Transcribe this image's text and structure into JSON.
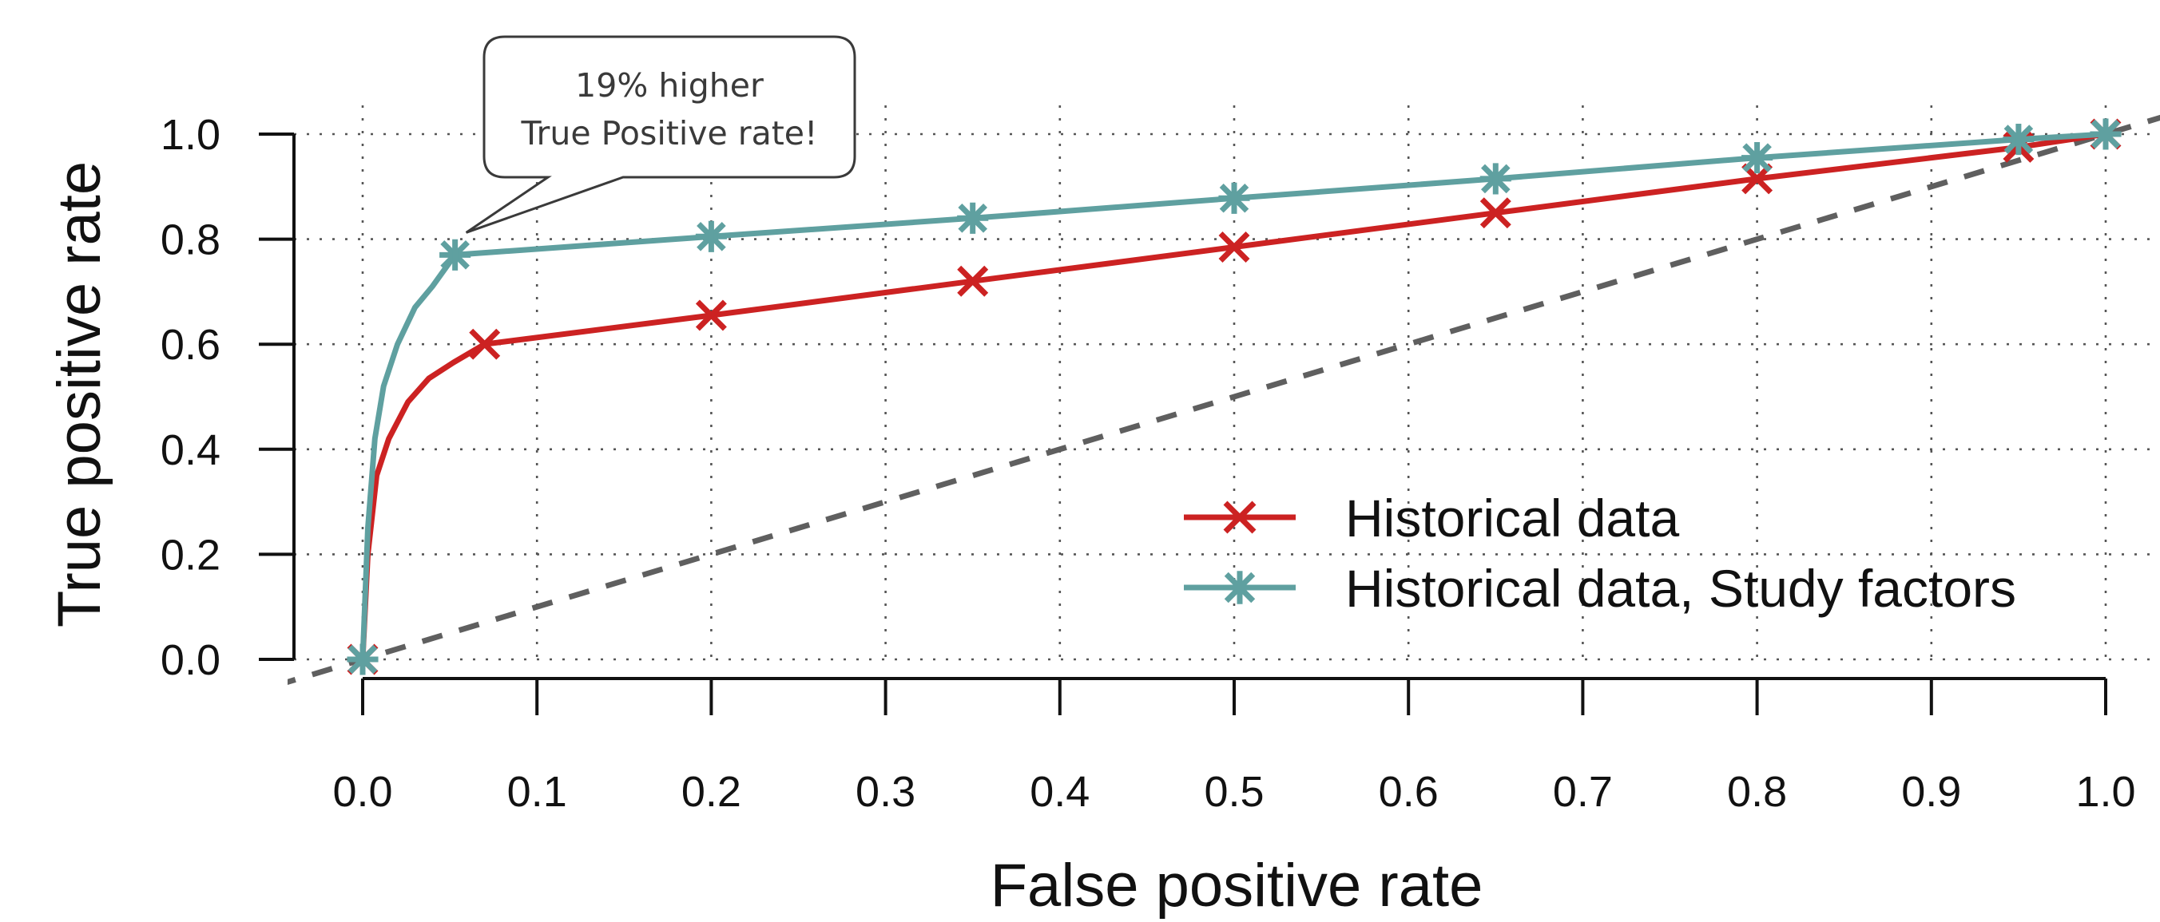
{
  "chart_data": {
    "type": "line",
    "xlabel": "False positive rate",
    "ylabel": "True positive rate",
    "xlim": [
      0.0,
      1.0
    ],
    "ylim": [
      0.0,
      1.0
    ],
    "x_ticks": [
      "0.0",
      "0.1",
      "0.2",
      "0.3",
      "0.4",
      "0.5",
      "0.6",
      "0.7",
      "0.8",
      "0.9",
      "1.0"
    ],
    "y_ticks": [
      "0.0",
      "0.2",
      "0.4",
      "0.6",
      "0.8",
      "1.0"
    ],
    "grid": true,
    "legend_position": "bottom-right",
    "reference_line": {
      "style": "dashed",
      "color": "#5f5f5f",
      "from": [
        0,
        0
      ],
      "to": [
        1,
        1
      ]
    },
    "series": [
      {
        "name": "Historical data",
        "color": "#cc2222",
        "marker": "x",
        "curve": [
          [
            0.0,
            0.0
          ],
          [
            0.003,
            0.2
          ],
          [
            0.008,
            0.35
          ],
          [
            0.015,
            0.42
          ],
          [
            0.026,
            0.49
          ],
          [
            0.038,
            0.535
          ],
          [
            0.052,
            0.565
          ],
          [
            0.07,
            0.6
          ],
          [
            0.2,
            0.655
          ],
          [
            0.35,
            0.72
          ],
          [
            0.5,
            0.785
          ],
          [
            0.65,
            0.85
          ],
          [
            0.8,
            0.915
          ],
          [
            0.95,
            0.975
          ],
          [
            1.0,
            1.0
          ]
        ],
        "points": [
          [
            0.0,
            0.0
          ],
          [
            0.07,
            0.6
          ],
          [
            0.2,
            0.655
          ],
          [
            0.35,
            0.72
          ],
          [
            0.5,
            0.785
          ],
          [
            0.65,
            0.85
          ],
          [
            0.8,
            0.915
          ],
          [
            0.95,
            0.975
          ],
          [
            1.0,
            1.0
          ]
        ]
      },
      {
        "name": "Historical data, Study factors",
        "color": "#5fa0a0",
        "marker": "asterisk",
        "curve": [
          [
            0.0,
            0.0
          ],
          [
            0.003,
            0.25
          ],
          [
            0.007,
            0.42
          ],
          [
            0.012,
            0.52
          ],
          [
            0.02,
            0.6
          ],
          [
            0.03,
            0.67
          ],
          [
            0.04,
            0.71
          ],
          [
            0.053,
            0.77
          ],
          [
            0.2,
            0.805
          ],
          [
            0.35,
            0.84
          ],
          [
            0.5,
            0.878
          ],
          [
            0.65,
            0.915
          ],
          [
            0.8,
            0.955
          ],
          [
            0.95,
            0.99
          ],
          [
            1.0,
            1.0
          ]
        ],
        "points": [
          [
            0.0,
            0.0
          ],
          [
            0.053,
            0.77
          ],
          [
            0.2,
            0.805
          ],
          [
            0.35,
            0.84
          ],
          [
            0.5,
            0.878
          ],
          [
            0.65,
            0.915
          ],
          [
            0.8,
            0.955
          ],
          [
            0.95,
            0.99
          ],
          [
            1.0,
            1.0
          ]
        ]
      }
    ],
    "annotation": {
      "lines": [
        "19% higher",
        "True Positive rate!"
      ],
      "points_to": [
        0.053,
        0.77
      ]
    }
  }
}
